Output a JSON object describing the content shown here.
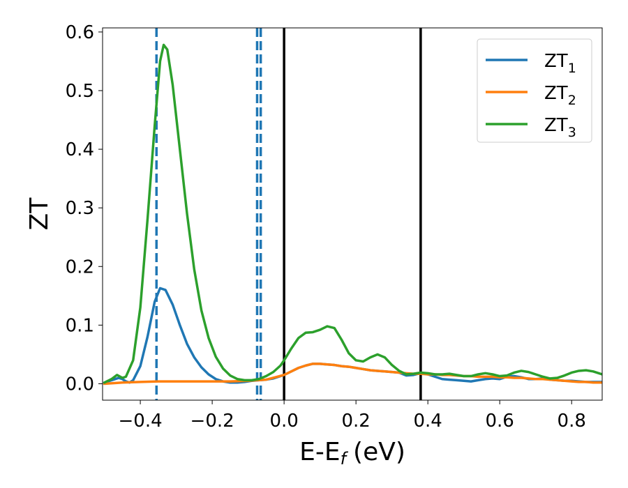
{
  "chart_data": {
    "type": "line",
    "xlabel": "E-E",
    "xlabel_sub": "f",
    "xlabel_unit": "(eV)",
    "ylabel": "ZT",
    "xlim": [
      -0.505,
      0.885
    ],
    "ylim": [
      -0.028,
      0.607
    ],
    "x_ticks": [
      -0.4,
      -0.2,
      0.0,
      0.2,
      0.4,
      0.6,
      0.8
    ],
    "x_tick_labels": [
      "−0.4",
      "−0.2",
      "0.0",
      "0.2",
      "0.4",
      "0.6",
      "0.8"
    ],
    "y_ticks": [
      0.0,
      0.1,
      0.2,
      0.3,
      0.4,
      0.5,
      0.6
    ],
    "y_tick_labels": [
      "0.0",
      "0.1",
      "0.2",
      "0.3",
      "0.4",
      "0.5",
      "0.6"
    ],
    "grid": false,
    "legend_position": "top-right",
    "series": [
      {
        "name": "ZT",
        "name_sub": "1",
        "color": "#1f77b4",
        "points": [
          [
            -0.5,
            0.002
          ],
          [
            -0.48,
            0.006
          ],
          [
            -0.46,
            0.01
          ],
          [
            -0.45,
            0.008
          ],
          [
            -0.44,
            0.004
          ],
          [
            -0.43,
            0.002
          ],
          [
            -0.42,
            0.006
          ],
          [
            -0.4,
            0.03
          ],
          [
            -0.38,
            0.08
          ],
          [
            -0.36,
            0.14
          ],
          [
            -0.345,
            0.163
          ],
          [
            -0.33,
            0.16
          ],
          [
            -0.31,
            0.135
          ],
          [
            -0.29,
            0.1
          ],
          [
            -0.27,
            0.068
          ],
          [
            -0.25,
            0.045
          ],
          [
            -0.23,
            0.028
          ],
          [
            -0.21,
            0.016
          ],
          [
            -0.19,
            0.008
          ],
          [
            -0.17,
            0.004
          ],
          [
            -0.15,
            0.002
          ],
          [
            -0.13,
            0.002
          ],
          [
            -0.11,
            0.003
          ],
          [
            -0.09,
            0.005
          ],
          [
            -0.07,
            0.006
          ],
          [
            -0.05,
            0.007
          ],
          [
            -0.03,
            0.009
          ],
          [
            0.0,
            0.015
          ],
          [
            0.02,
            0.021
          ],
          [
            0.04,
            0.027
          ],
          [
            0.06,
            0.031
          ],
          [
            0.08,
            0.034
          ],
          [
            0.1,
            0.034
          ],
          [
            0.12,
            0.033
          ],
          [
            0.14,
            0.032
          ],
          [
            0.16,
            0.03
          ],
          [
            0.18,
            0.029
          ],
          [
            0.2,
            0.027
          ],
          [
            0.22,
            0.025
          ],
          [
            0.24,
            0.023
          ],
          [
            0.26,
            0.022
          ],
          [
            0.28,
            0.021
          ],
          [
            0.3,
            0.02
          ],
          [
            0.32,
            0.019
          ],
          [
            0.34,
            0.014
          ],
          [
            0.36,
            0.015
          ],
          [
            0.38,
            0.018
          ],
          [
            0.4,
            0.016
          ],
          [
            0.42,
            0.012
          ],
          [
            0.44,
            0.008
          ],
          [
            0.46,
            0.007
          ],
          [
            0.48,
            0.006
          ],
          [
            0.5,
            0.005
          ],
          [
            0.52,
            0.004
          ],
          [
            0.54,
            0.006
          ],
          [
            0.56,
            0.008
          ],
          [
            0.58,
            0.009
          ],
          [
            0.6,
            0.008
          ],
          [
            0.62,
            0.012
          ],
          [
            0.64,
            0.013
          ],
          [
            0.66,
            0.011
          ],
          [
            0.68,
            0.008
          ],
          [
            0.7,
            0.008
          ],
          [
            0.72,
            0.009
          ],
          [
            0.74,
            0.007
          ],
          [
            0.76,
            0.006
          ],
          [
            0.78,
            0.005
          ],
          [
            0.8,
            0.005
          ],
          [
            0.82,
            0.004
          ],
          [
            0.84,
            0.003
          ],
          [
            0.86,
            0.003
          ],
          [
            0.885,
            0.003
          ]
        ]
      },
      {
        "name": "ZT",
        "name_sub": "2",
        "color": "#ff7f0e",
        "points": [
          [
            -0.5,
            0.0
          ],
          [
            -0.45,
            0.002
          ],
          [
            -0.4,
            0.003
          ],
          [
            -0.35,
            0.004
          ],
          [
            -0.3,
            0.004
          ],
          [
            -0.25,
            0.004
          ],
          [
            -0.2,
            0.004
          ],
          [
            -0.15,
            0.004
          ],
          [
            -0.1,
            0.005
          ],
          [
            -0.05,
            0.007
          ],
          [
            0.0,
            0.015
          ],
          [
            0.02,
            0.021
          ],
          [
            0.04,
            0.027
          ],
          [
            0.06,
            0.031
          ],
          [
            0.08,
            0.034
          ],
          [
            0.1,
            0.034
          ],
          [
            0.12,
            0.033
          ],
          [
            0.14,
            0.032
          ],
          [
            0.16,
            0.03
          ],
          [
            0.18,
            0.029
          ],
          [
            0.2,
            0.027
          ],
          [
            0.22,
            0.025
          ],
          [
            0.24,
            0.023
          ],
          [
            0.26,
            0.022
          ],
          [
            0.28,
            0.021
          ],
          [
            0.3,
            0.02
          ],
          [
            0.32,
            0.019
          ],
          [
            0.34,
            0.018
          ],
          [
            0.36,
            0.017
          ],
          [
            0.38,
            0.017
          ],
          [
            0.4,
            0.016
          ],
          [
            0.42,
            0.016
          ],
          [
            0.44,
            0.015
          ],
          [
            0.46,
            0.015
          ],
          [
            0.48,
            0.014
          ],
          [
            0.5,
            0.013
          ],
          [
            0.52,
            0.013
          ],
          [
            0.54,
            0.012
          ],
          [
            0.56,
            0.012
          ],
          [
            0.58,
            0.012
          ],
          [
            0.6,
            0.011
          ],
          [
            0.62,
            0.011
          ],
          [
            0.64,
            0.01
          ],
          [
            0.66,
            0.01
          ],
          [
            0.68,
            0.009
          ],
          [
            0.7,
            0.008
          ],
          [
            0.72,
            0.008
          ],
          [
            0.74,
            0.007
          ],
          [
            0.76,
            0.006
          ],
          [
            0.78,
            0.005
          ],
          [
            0.8,
            0.004
          ],
          [
            0.82,
            0.003
          ],
          [
            0.84,
            0.003
          ],
          [
            0.86,
            0.002
          ],
          [
            0.885,
            0.002
          ]
        ]
      },
      {
        "name": "ZT",
        "name_sub": "3",
        "color": "#2ca02c",
        "points": [
          [
            -0.5,
            0.002
          ],
          [
            -0.48,
            0.008
          ],
          [
            -0.465,
            0.015
          ],
          [
            -0.45,
            0.01
          ],
          [
            -0.44,
            0.012
          ],
          [
            -0.42,
            0.04
          ],
          [
            -0.4,
            0.13
          ],
          [
            -0.38,
            0.28
          ],
          [
            -0.36,
            0.44
          ],
          [
            -0.345,
            0.55
          ],
          [
            -0.335,
            0.578
          ],
          [
            -0.325,
            0.57
          ],
          [
            -0.31,
            0.51
          ],
          [
            -0.29,
            0.4
          ],
          [
            -0.27,
            0.29
          ],
          [
            -0.25,
            0.195
          ],
          [
            -0.23,
            0.125
          ],
          [
            -0.21,
            0.078
          ],
          [
            -0.19,
            0.046
          ],
          [
            -0.17,
            0.026
          ],
          [
            -0.15,
            0.014
          ],
          [
            -0.13,
            0.008
          ],
          [
            -0.11,
            0.006
          ],
          [
            -0.09,
            0.006
          ],
          [
            -0.07,
            0.008
          ],
          [
            -0.05,
            0.013
          ],
          [
            -0.03,
            0.02
          ],
          [
            -0.01,
            0.031
          ],
          [
            0.0,
            0.04
          ],
          [
            0.02,
            0.06
          ],
          [
            0.04,
            0.078
          ],
          [
            0.06,
            0.087
          ],
          [
            0.08,
            0.088
          ],
          [
            0.1,
            0.092
          ],
          [
            0.12,
            0.098
          ],
          [
            0.14,
            0.095
          ],
          [
            0.16,
            0.075
          ],
          [
            0.18,
            0.052
          ],
          [
            0.2,
            0.04
          ],
          [
            0.22,
            0.038
          ],
          [
            0.24,
            0.045
          ],
          [
            0.26,
            0.05
          ],
          [
            0.28,
            0.045
          ],
          [
            0.3,
            0.032
          ],
          [
            0.32,
            0.022
          ],
          [
            0.34,
            0.016
          ],
          [
            0.36,
            0.017
          ],
          [
            0.38,
            0.019
          ],
          [
            0.4,
            0.018
          ],
          [
            0.42,
            0.016
          ],
          [
            0.44,
            0.016
          ],
          [
            0.46,
            0.017
          ],
          [
            0.48,
            0.015
          ],
          [
            0.5,
            0.013
          ],
          [
            0.52,
            0.013
          ],
          [
            0.54,
            0.016
          ],
          [
            0.56,
            0.018
          ],
          [
            0.58,
            0.016
          ],
          [
            0.6,
            0.013
          ],
          [
            0.62,
            0.014
          ],
          [
            0.64,
            0.019
          ],
          [
            0.66,
            0.022
          ],
          [
            0.68,
            0.02
          ],
          [
            0.7,
            0.016
          ],
          [
            0.72,
            0.012
          ],
          [
            0.74,
            0.009
          ],
          [
            0.76,
            0.01
          ],
          [
            0.78,
            0.014
          ],
          [
            0.8,
            0.019
          ],
          [
            0.82,
            0.022
          ],
          [
            0.84,
            0.023
          ],
          [
            0.86,
            0.021
          ],
          [
            0.885,
            0.016
          ]
        ]
      }
    ],
    "reference_lines": [
      {
        "x": -0.355,
        "style": "dashed",
        "color": "#1f77b4"
      },
      {
        "x": -0.075,
        "style": "dashed",
        "color": "#1f77b4"
      },
      {
        "x": -0.065,
        "style": "dashed",
        "color": "#1f77b4"
      },
      {
        "x": 0.0,
        "style": "solid",
        "color": "#000000"
      },
      {
        "x": 0.38,
        "style": "solid",
        "color": "#000000"
      }
    ]
  }
}
